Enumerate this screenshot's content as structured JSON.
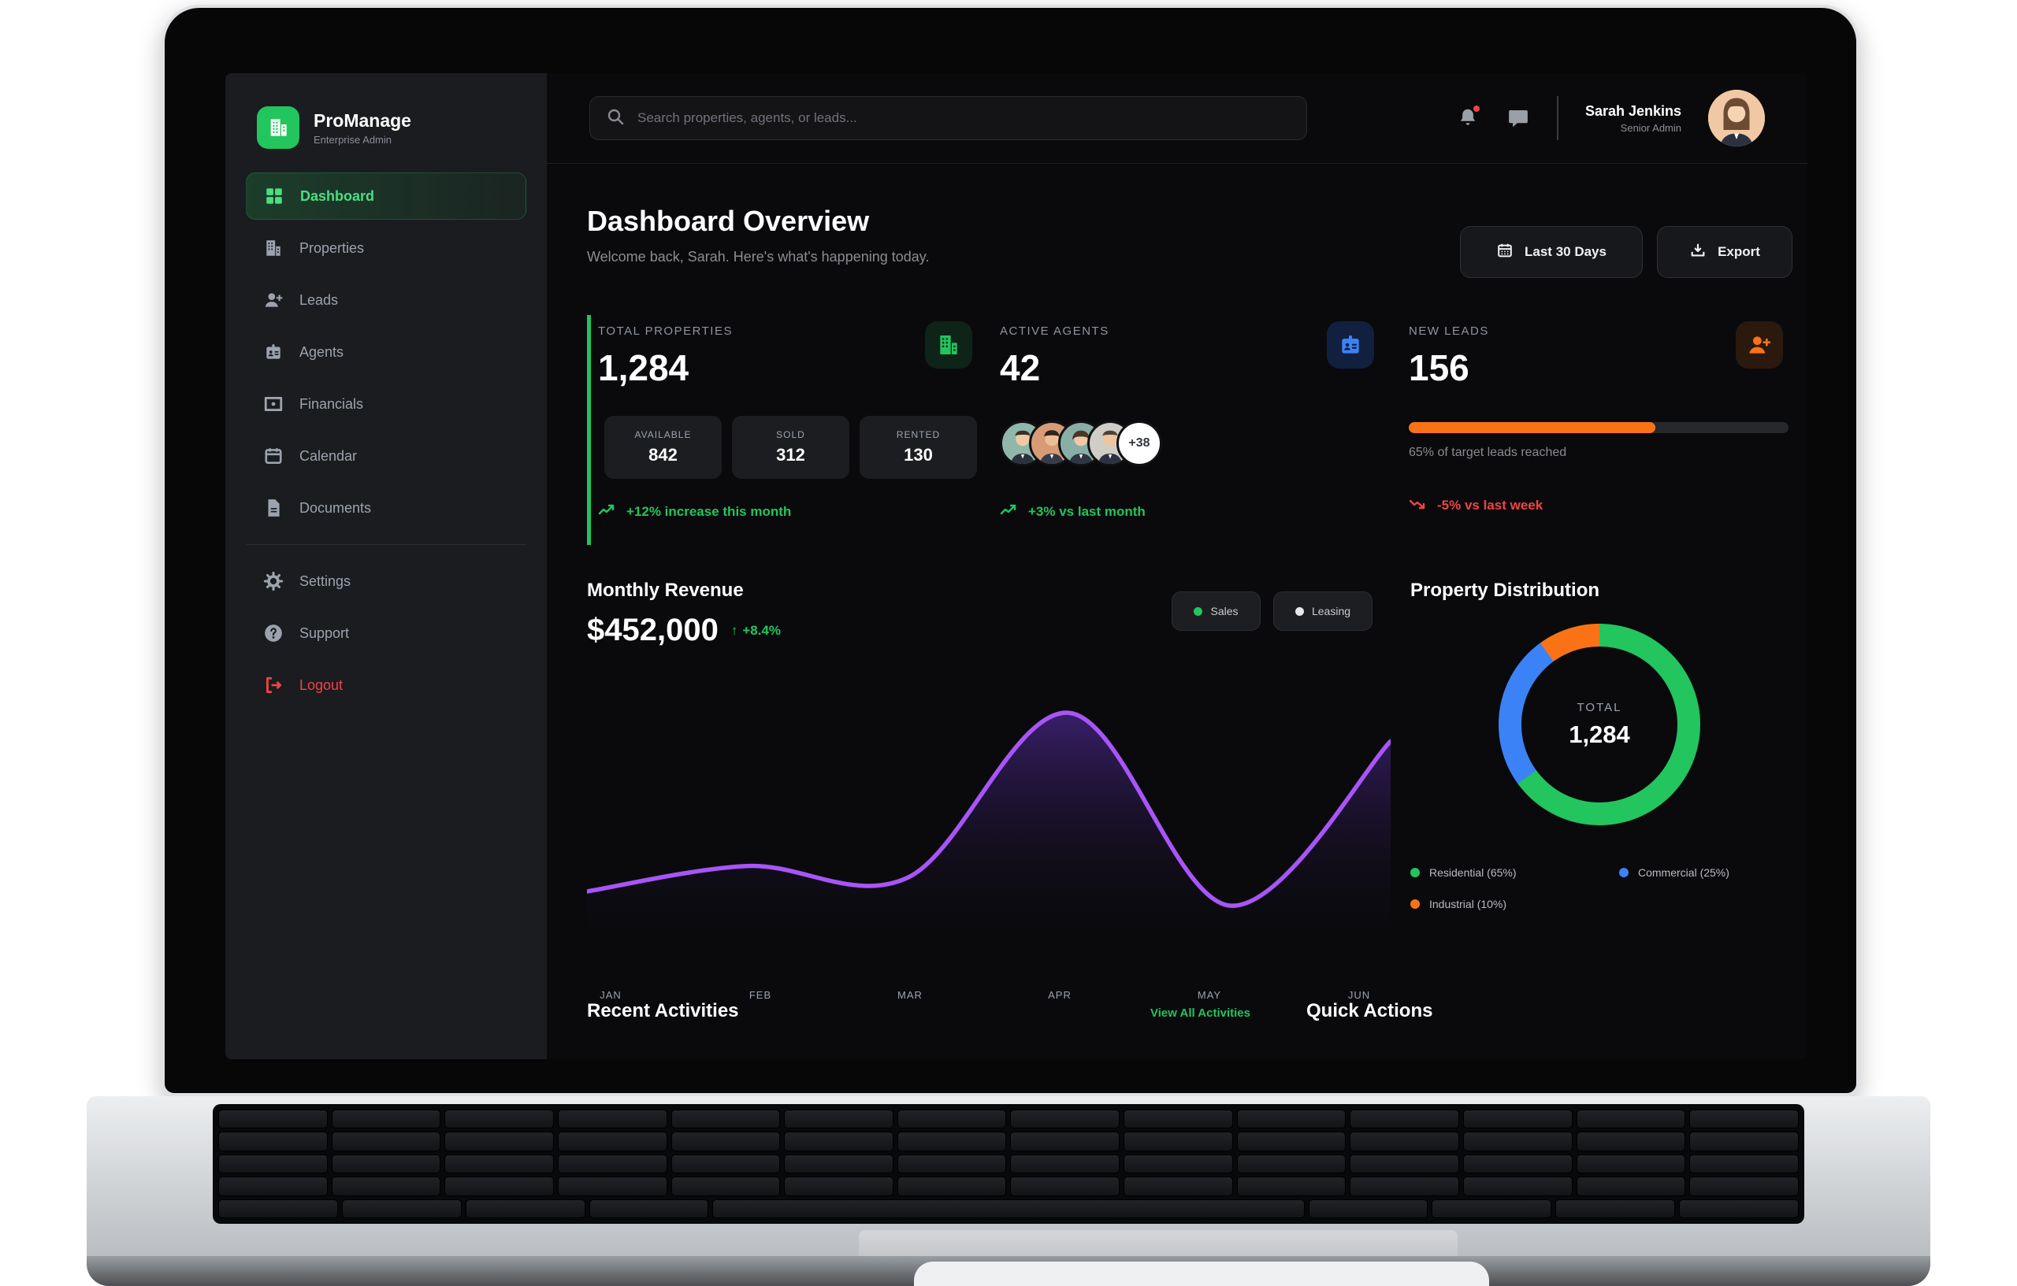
{
  "app": {
    "name": "ProManage",
    "subtitle": "Enterprise Admin"
  },
  "sidebar": {
    "items": [
      {
        "label": "Dashboard",
        "icon": "grid-icon",
        "active": true
      },
      {
        "label": "Properties",
        "icon": "building-icon",
        "active": false
      },
      {
        "label": "Leads",
        "icon": "user-plus-icon",
        "active": false
      },
      {
        "label": "Agents",
        "icon": "id-badge-icon",
        "active": false
      },
      {
        "label": "Financials",
        "icon": "credit-card-icon",
        "active": false
      },
      {
        "label": "Calendar",
        "icon": "calendar-icon",
        "active": false
      },
      {
        "label": "Documents",
        "icon": "file-icon",
        "active": false
      },
      {
        "label": "Settings",
        "icon": "gear-icon",
        "active": false
      },
      {
        "label": "Support",
        "icon": "help-icon",
        "active": false
      }
    ],
    "logout_label": "Logout"
  },
  "topbar": {
    "search_placeholder": "Search properties, agents, or leads...",
    "icons": [
      "search-icon",
      "bell-icon",
      "chat-icon"
    ],
    "user": {
      "name": "Sarah Jenkins",
      "role": "Senior Admin"
    }
  },
  "header": {
    "title": "Dashboard Overview",
    "subtitle": "Welcome back, Sarah. Here's what's happening today.",
    "range_button": "Last 30 Days",
    "export_button": "Export"
  },
  "stats": {
    "properties": {
      "label": "TOTAL PROPERTIES",
      "value": "1,284",
      "breakdown": [
        {
          "label": "AVAILABLE",
          "value": "842"
        },
        {
          "label": "SOLD",
          "value": "312"
        },
        {
          "label": "RENTED",
          "value": "130"
        }
      ],
      "trend": "+12% increase this month",
      "trend_direction": "up"
    },
    "agents": {
      "label": "ACTIVE AGENTS",
      "value": "42",
      "avatars_more": "+38",
      "trend": "+3% vs last month",
      "trend_direction": "up"
    },
    "leads": {
      "label": "NEW LEADS",
      "value": "156",
      "progress_pct": 65,
      "progress_css": "65%",
      "progress_caption": "65% of target leads reached",
      "trend": "-5% vs last week",
      "trend_direction": "down"
    }
  },
  "revenue": {
    "title": "Monthly Revenue",
    "value": "$452,000",
    "trend_arrow": "↑",
    "trend": "+8.4%",
    "legend": [
      {
        "label": "Sales",
        "color": "#22c55e"
      },
      {
        "label": "Leasing",
        "color": "#e5e7eb"
      }
    ]
  },
  "chart_data": [
    {
      "type": "area",
      "title": "Monthly Revenue",
      "categories": [
        "JAN",
        "FEB",
        "MAR",
        "APR",
        "MAY",
        "JUN"
      ],
      "values": [
        25,
        34,
        30,
        88,
        20,
        78
      ],
      "value_note": "relative scale 0-100 estimated from pixels; no y-axis shown",
      "line_color": "#a855f7",
      "fill": "purple gradient fade to transparent",
      "grid": false,
      "legend_position": "top-right"
    },
    {
      "type": "pie",
      "title": "Property Distribution",
      "labels": [
        "Residential",
        "Commercial",
        "Industrial"
      ],
      "values": [
        65,
        25,
        10
      ],
      "colors": [
        "#22c55e",
        "#3b82f6",
        "#f97316"
      ],
      "center_label": "TOTAL",
      "center_value": "1,284"
    }
  ],
  "distribution": {
    "title": "Property Distribution",
    "total_label": "TOTAL",
    "total_value": "1,284",
    "segments": [
      {
        "text": "Residential (65%)",
        "pct": 65,
        "color": "#22c55e"
      },
      {
        "text": "Commercial (25%)",
        "pct": 25,
        "color": "#3b82f6"
      },
      {
        "text": "Industrial (10%)",
        "pct": 10,
        "color": "#f97316"
      }
    ]
  },
  "bottom": {
    "recent_title": "Recent Activities",
    "view_all": "View All Activities",
    "quick_title": "Quick Actions"
  },
  "colors": {
    "accent_green": "#22c55e",
    "accent_red": "#ef4444",
    "accent_orange": "#f97316",
    "accent_blue": "#3b82f6",
    "accent_purple": "#a855f7",
    "sidebar_bg": "#1b1c1f",
    "screen_bg": "#0a0a0c"
  }
}
